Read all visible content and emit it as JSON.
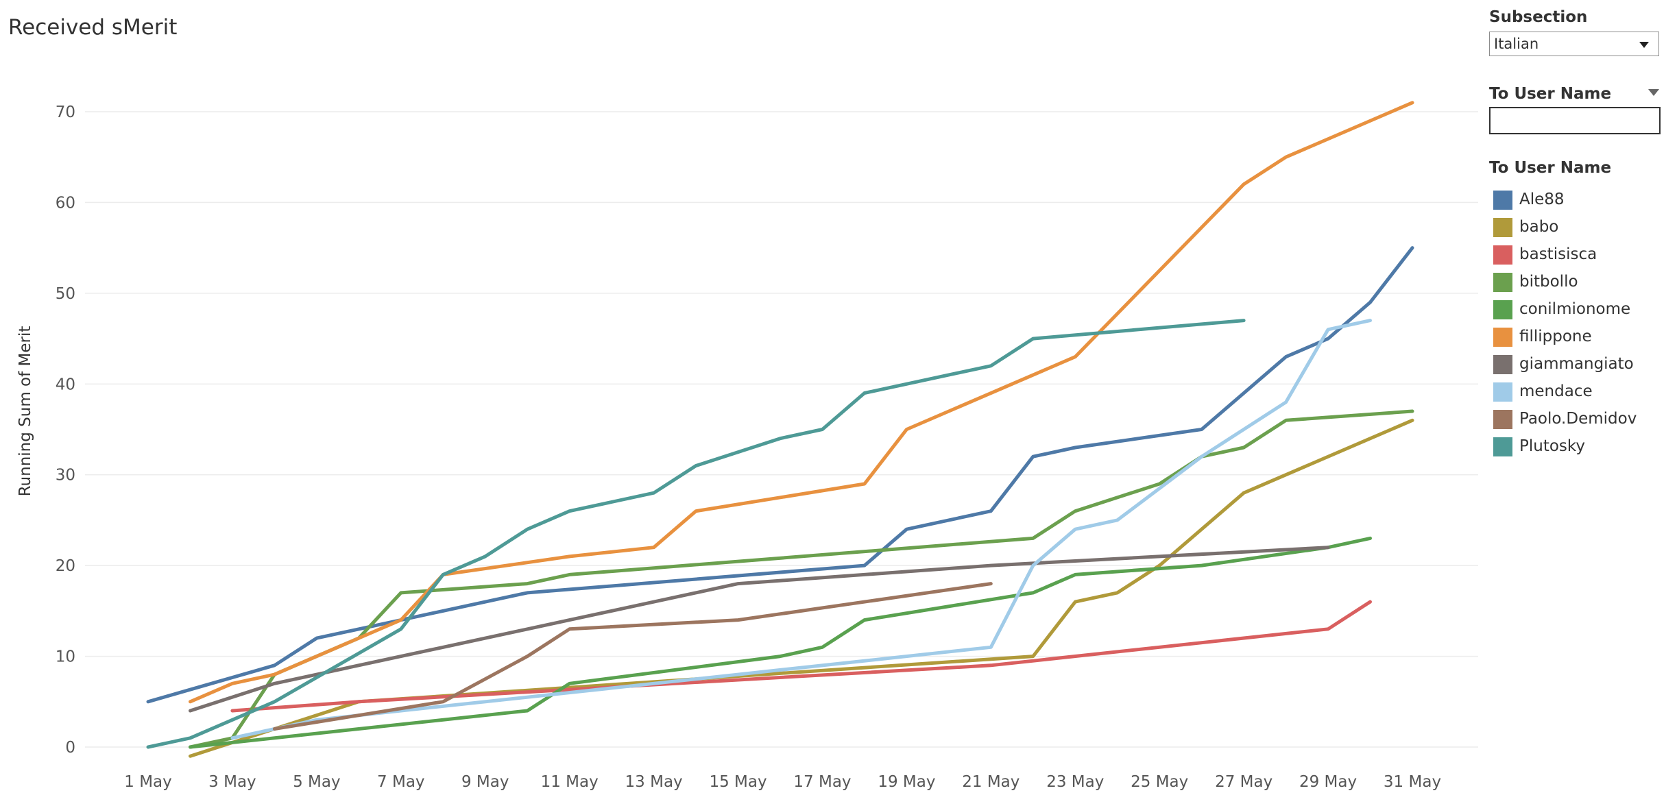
{
  "title": "Received sMerit",
  "filters": {
    "subsection_title": "Subsection",
    "subsection_value": "Italian",
    "username_title": "To User Name",
    "username_value": ""
  },
  "legend": {
    "title": "To User Name"
  },
  "chart_data": {
    "type": "line",
    "title": "Received sMerit",
    "ylabel": "Running Sum of Merit",
    "xlim": [
      "2018-05-01",
      "2018-05-31"
    ],
    "ylim": [
      0,
      70
    ],
    "x_ticks": [
      "1 May",
      "3 May",
      "5 May",
      "7 May",
      "9 May",
      "11 May",
      "13 May",
      "15 May",
      "17 May",
      "19 May",
      "21 May",
      "23 May",
      "25 May",
      "27 May",
      "29 May",
      "31 May"
    ],
    "y_ticks": [
      0,
      10,
      20,
      30,
      40,
      50,
      60,
      70
    ],
    "grid": true,
    "legend_position": "right",
    "series": [
      {
        "name": "Ale88",
        "color": "#4E79A7",
        "points": [
          [
            "2018-05-01",
            5
          ],
          [
            "2018-05-04",
            9
          ],
          [
            "2018-05-05",
            12
          ],
          [
            "2018-05-10",
            17
          ],
          [
            "2018-05-18",
            20
          ],
          [
            "2018-05-19",
            24
          ],
          [
            "2018-05-21",
            26
          ],
          [
            "2018-05-22",
            32
          ],
          [
            "2018-05-23",
            33
          ],
          [
            "2018-05-26",
            35
          ],
          [
            "2018-05-28",
            43
          ],
          [
            "2018-05-29",
            45
          ],
          [
            "2018-05-30",
            49
          ],
          [
            "2018-05-31",
            55
          ]
        ]
      },
      {
        "name": "babo",
        "color": "#B09A3A",
        "points": [
          [
            "2018-05-02",
            -1
          ],
          [
            "2018-05-06",
            5
          ],
          [
            "2018-05-22",
            10
          ],
          [
            "2018-05-23",
            16
          ],
          [
            "2018-05-24",
            17
          ],
          [
            "2018-05-25",
            20
          ],
          [
            "2018-05-27",
            28
          ],
          [
            "2018-05-31",
            36
          ]
        ]
      },
      {
        "name": "bastisisca",
        "color": "#D95F5F",
        "points": [
          [
            "2018-05-03",
            4
          ],
          [
            "2018-05-06",
            5
          ],
          [
            "2018-05-21",
            9
          ],
          [
            "2018-05-29",
            13
          ],
          [
            "2018-05-30",
            16
          ]
        ]
      },
      {
        "name": "bitbollo",
        "color": "#6BA04E",
        "points": [
          [
            "2018-05-02",
            0
          ],
          [
            "2018-05-03",
            1
          ],
          [
            "2018-05-04",
            8
          ],
          [
            "2018-05-06",
            12
          ],
          [
            "2018-05-07",
            17
          ],
          [
            "2018-05-10",
            18
          ],
          [
            "2018-05-11",
            19
          ],
          [
            "2018-05-22",
            23
          ],
          [
            "2018-05-23",
            26
          ],
          [
            "2018-05-25",
            29
          ],
          [
            "2018-05-26",
            32
          ],
          [
            "2018-05-27",
            33
          ],
          [
            "2018-05-28",
            36
          ],
          [
            "2018-05-31",
            37
          ]
        ]
      },
      {
        "name": "conilmionome",
        "color": "#59A14F",
        "points": [
          [
            "2018-05-02",
            0
          ],
          [
            "2018-05-10",
            4
          ],
          [
            "2018-05-11",
            7
          ],
          [
            "2018-05-16",
            10
          ],
          [
            "2018-05-17",
            11
          ],
          [
            "2018-05-18",
            14
          ],
          [
            "2018-05-22",
            17
          ],
          [
            "2018-05-23",
            19
          ],
          [
            "2018-05-26",
            20
          ],
          [
            "2018-05-29",
            22
          ],
          [
            "2018-05-30",
            23
          ]
        ]
      },
      {
        "name": "fillippone",
        "color": "#E8913F",
        "points": [
          [
            "2018-05-02",
            5
          ],
          [
            "2018-05-03",
            7
          ],
          [
            "2018-05-04",
            8
          ],
          [
            "2018-05-07",
            14
          ],
          [
            "2018-05-08",
            19
          ],
          [
            "2018-05-11",
            21
          ],
          [
            "2018-05-13",
            22
          ],
          [
            "2018-05-14",
            26
          ],
          [
            "2018-05-18",
            29
          ],
          [
            "2018-05-19",
            35
          ],
          [
            "2018-05-23",
            43
          ],
          [
            "2018-05-27",
            62
          ],
          [
            "2018-05-28",
            65
          ],
          [
            "2018-05-31",
            71
          ]
        ]
      },
      {
        "name": "giammangiato",
        "color": "#79706E",
        "points": [
          [
            "2018-05-02",
            4
          ],
          [
            "2018-05-04",
            7
          ],
          [
            "2018-05-11",
            14
          ],
          [
            "2018-05-15",
            18
          ],
          [
            "2018-05-21",
            20
          ],
          [
            "2018-05-29",
            22
          ]
        ]
      },
      {
        "name": "mendace",
        "color": "#A0CBE8",
        "points": [
          [
            "2018-05-03",
            1
          ],
          [
            "2018-05-05",
            3
          ],
          [
            "2018-05-15",
            8
          ],
          [
            "2018-05-21",
            11
          ],
          [
            "2018-05-22",
            20
          ],
          [
            "2018-05-23",
            24
          ],
          [
            "2018-05-24",
            25
          ],
          [
            "2018-05-26",
            32
          ],
          [
            "2018-05-28",
            38
          ],
          [
            "2018-05-29",
            46
          ],
          [
            "2018-05-30",
            47
          ]
        ]
      },
      {
        "name": "Paolo.Demidov",
        "color": "#9C755F",
        "points": [
          [
            "2018-05-04",
            2
          ],
          [
            "2018-05-08",
            5
          ],
          [
            "2018-05-10",
            10
          ],
          [
            "2018-05-11",
            13
          ],
          [
            "2018-05-15",
            14
          ],
          [
            "2018-05-21",
            18
          ]
        ]
      },
      {
        "name": "Plutosky",
        "color": "#4E9A96",
        "points": [
          [
            "2018-05-01",
            0
          ],
          [
            "2018-05-02",
            1
          ],
          [
            "2018-05-04",
            5
          ],
          [
            "2018-05-07",
            13
          ],
          [
            "2018-05-08",
            19
          ],
          [
            "2018-05-09",
            21
          ],
          [
            "2018-05-10",
            24
          ],
          [
            "2018-05-11",
            26
          ],
          [
            "2018-05-13",
            28
          ],
          [
            "2018-05-14",
            31
          ],
          [
            "2018-05-16",
            34
          ],
          [
            "2018-05-17",
            35
          ],
          [
            "2018-05-18",
            39
          ],
          [
            "2018-05-21",
            42
          ],
          [
            "2018-05-22",
            45
          ],
          [
            "2018-05-27",
            47
          ]
        ]
      }
    ]
  }
}
